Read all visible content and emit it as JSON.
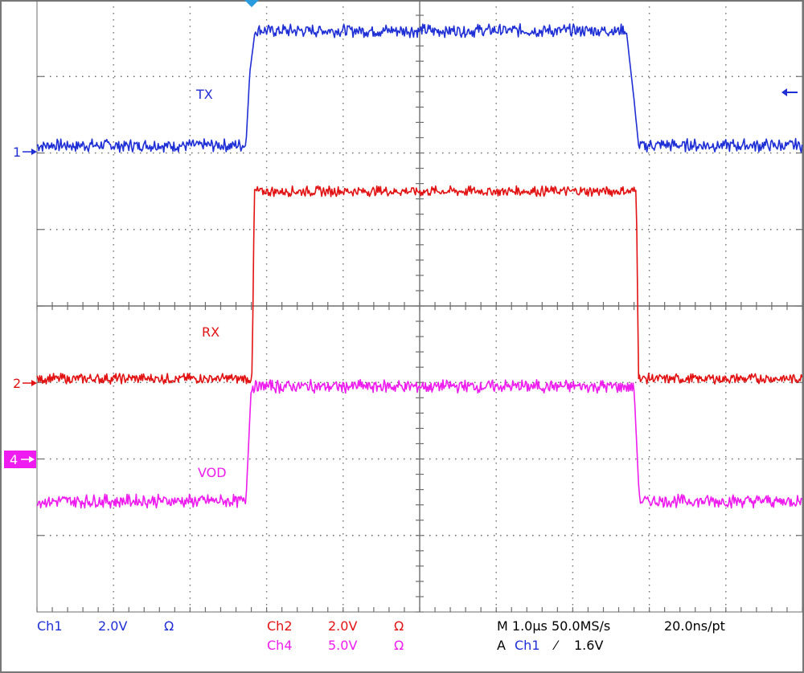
{
  "chart_data": {
    "type": "line",
    "title": "",
    "xlabel": "",
    "ylabel": "",
    "grid": true,
    "divisions": {
      "x": 10,
      "y": 8
    },
    "x_unit_per_div": "1.0µs",
    "xlim_div": [
      0,
      10
    ],
    "ylim_div": [
      0,
      8
    ],
    "series": [
      {
        "name": "TX",
        "channel": "1",
        "color": "#1f2fd6",
        "baseline_div": 6.1,
        "x_div": [
          0,
          2.73,
          2.78,
          2.85,
          7.7,
          7.8,
          7.86,
          10
        ],
        "y_div": [
          6.1,
          6.1,
          7.05,
          7.6,
          7.6,
          6.7,
          6.1,
          6.1
        ],
        "noise_div": 0.09
      },
      {
        "name": "RX",
        "channel": "2",
        "color": "#e31212",
        "baseline_div": 3.05,
        "x_div": [
          0,
          2.81,
          2.84,
          7.83,
          7.86,
          10
        ],
        "y_div": [
          3.05,
          3.05,
          5.5,
          5.5,
          3.05,
          3.05
        ],
        "noise_div": 0.07
      },
      {
        "name": "VOD",
        "channel": "4",
        "color": "#ee1cee",
        "baseline_div": 2.1,
        "x_div": [
          0,
          2.73,
          2.8,
          7.8,
          7.87,
          10
        ],
        "y_div": [
          1.45,
          1.45,
          2.95,
          2.95,
          1.45,
          1.45
        ],
        "noise_div": 0.09
      }
    ]
  },
  "markers": {
    "ch1": "1",
    "ch2": "2",
    "ch4": "4"
  },
  "status": {
    "ch1_label": "Ch1",
    "ch1_scale": "2.0V",
    "ch1_imp": "Ω",
    "ch2_label": "Ch2",
    "ch2_scale": "2.0V",
    "ch2_imp": "Ω",
    "ch4_label": "Ch4",
    "ch4_scale": "5.0V",
    "ch4_imp": "Ω",
    "timebase": "M 1.0µs 50.0MS/s",
    "resolution": "20.0ns/pt",
    "trigger_prefix": "A",
    "trigger_source": "Ch1",
    "trigger_slope": "⁄",
    "trigger_level": "1.6V"
  },
  "colors": {
    "grid": "#6e6e6e",
    "ch1": "#1f2fd6",
    "ch2": "#e31212",
    "ch4": "#ee1cee",
    "trigger_marker": "#2b9be0"
  }
}
